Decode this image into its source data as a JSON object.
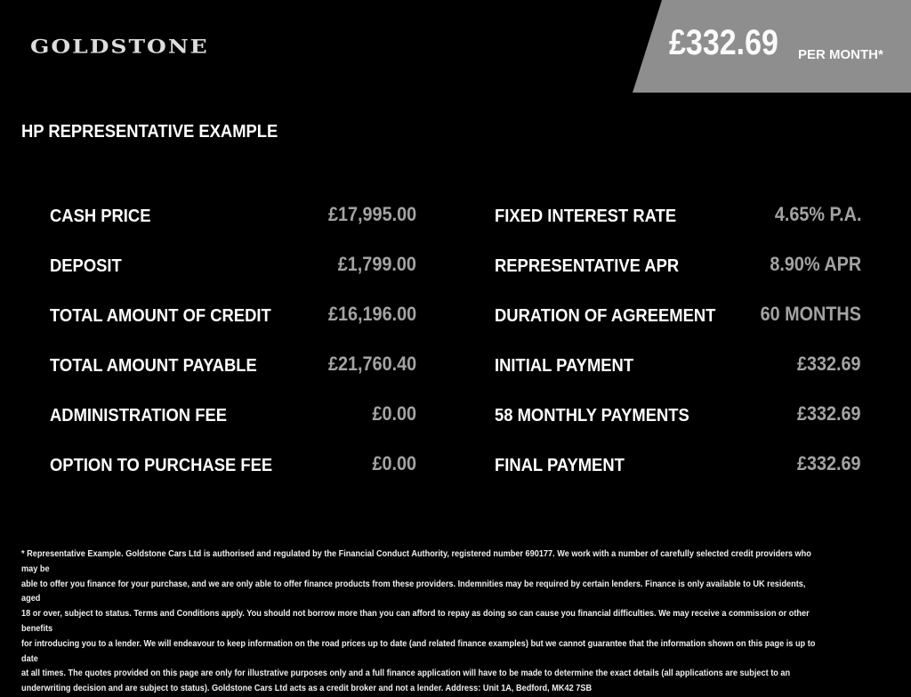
{
  "brand": {
    "logo_text": "GOLDSTONE"
  },
  "banner": {
    "amount": "£332.69",
    "suffix": "PER MONTH*",
    "color": "#8e8e8e"
  },
  "heading": "HP REPRESENTATIVE EXAMPLE",
  "left_items": [
    {
      "label": "CASH PRICE",
      "value": "£17,995.00"
    },
    {
      "label": "DEPOSIT",
      "value": "£1,799.00"
    },
    {
      "label": "TOTAL AMOUNT OF CREDIT",
      "value": "£16,196.00"
    },
    {
      "label": "TOTAL AMOUNT PAYABLE",
      "value": "£21,760.40"
    },
    {
      "label": "ADMINISTRATION FEE",
      "value": "£0.00"
    },
    {
      "label": "OPTION TO PURCHASE FEE",
      "value": "£0.00"
    }
  ],
  "right_items": [
    {
      "label": "FIXED INTEREST RATE",
      "value": "4.65% P.A."
    },
    {
      "label": "REPRESENTATIVE APR",
      "value": "8.90% APR"
    },
    {
      "label": "DURATION OF AGREEMENT",
      "value": "60 MONTHS"
    },
    {
      "label": "INITIAL PAYMENT",
      "value": "£332.69"
    },
    {
      "label": "58 MONTHLY PAYMENTS",
      "value": "£332.69"
    },
    {
      "label": "FINAL PAYMENT",
      "value": "£332.69"
    }
  ],
  "disclaimer_lines": [
    "* Representative Example. Goldstone Cars Ltd is authorised and regulated by the Financial Conduct Authority, registered number 690177. We work with a number of carefully selected credit providers who may be",
    "able to offer you finance for your purchase, and we are only able to offer finance products from these providers. Indemnities may be required by certain lenders. Finance is only available to UK residents, aged",
    "18 or over, subject to status. Terms and Conditions apply. You should not borrow more than you can afford to repay as doing so can cause you financial difficulties. We may receive a commission or other benefits",
    "for introducing you to a lender. We will endeavour to keep information on the road prices up to date (and related finance examples) but we cannot guarantee that the information shown on this page is up to date",
    "at all times. The quotes provided on this page are only for illustrative purposes only and a full finance application will have to be made to determine the exact details (all applications are subject to an",
    "underwriting decision and are subject to status). Goldstone Cars Ltd acts as a credit broker and not a lender. Address: Unit 1A, Bedford, MK42 7SB"
  ]
}
